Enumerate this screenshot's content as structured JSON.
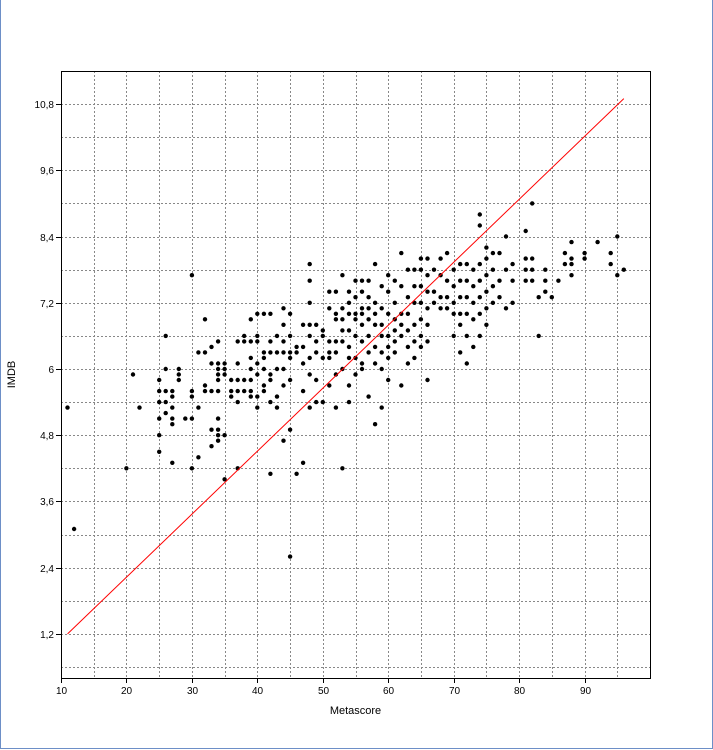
{
  "chart_data": {
    "type": "scatter",
    "title": "",
    "xlabel": "Metascore",
    "ylabel": "IMDB",
    "xlim": [
      10,
      100
    ],
    "ylim": [
      0.4,
      11.4
    ],
    "xticks": [
      10,
      20,
      30,
      40,
      50,
      60,
      70,
      80,
      90
    ],
    "xtick_labels": [
      "10",
      "20",
      "30",
      "40",
      "50",
      "60",
      "70",
      "80",
      "90"
    ],
    "yticks": [
      1.2,
      2.4,
      3.6,
      4.8,
      6.0,
      7.2,
      8.4,
      9.6,
      10.8
    ],
    "ytick_labels": [
      "1,2",
      "2,4",
      "3,6",
      "4,8",
      "6",
      "7,2",
      "8,4",
      "9,6",
      "10,8"
    ],
    "grid": true,
    "grid_style": "dotted",
    "point_color": "#000000",
    "line_color": "#ff0000",
    "reference_line": {
      "x": [
        11,
        96
      ],
      "y": [
        1.2,
        10.9
      ]
    },
    "points": [
      [
        11,
        5.3
      ],
      [
        12,
        3.1
      ],
      [
        20,
        4.2
      ],
      [
        21,
        5.9
      ],
      [
        22,
        5.3
      ],
      [
        25,
        5.8
      ],
      [
        25,
        5.6
      ],
      [
        25,
        5.4
      ],
      [
        25,
        5.1
      ],
      [
        25,
        4.8
      ],
      [
        25,
        4.5
      ],
      [
        26,
        6.0
      ],
      [
        26,
        6.6
      ],
      [
        26,
        5.6
      ],
      [
        26,
        5.4
      ],
      [
        26,
        5.2
      ],
      [
        27,
        5.6
      ],
      [
        27,
        5.5
      ],
      [
        27,
        5.3
      ],
      [
        27,
        5.1
      ],
      [
        27,
        5.0
      ],
      [
        27,
        4.3
      ],
      [
        28,
        6.0
      ],
      [
        28,
        5.9
      ],
      [
        28,
        5.8
      ],
      [
        29,
        5.1
      ],
      [
        30,
        7.7
      ],
      [
        30,
        5.6
      ],
      [
        30,
        5.5
      ],
      [
        30,
        5.1
      ],
      [
        30,
        4.2
      ],
      [
        31,
        6.3
      ],
      [
        31,
        5.3
      ],
      [
        31,
        4.4
      ],
      [
        32,
        6.9
      ],
      [
        32,
        6.3
      ],
      [
        32,
        5.7
      ],
      [
        32,
        5.6
      ],
      [
        33,
        6.4
      ],
      [
        33,
        6.1
      ],
      [
        33,
        5.6
      ],
      [
        33,
        4.9
      ],
      [
        33,
        4.6
      ],
      [
        34,
        6.5
      ],
      [
        34,
        6.1
      ],
      [
        34,
        6.0
      ],
      [
        34,
        5.9
      ],
      [
        34,
        5.8
      ],
      [
        34,
        5.6
      ],
      [
        34,
        5.1
      ],
      [
        34,
        4.9
      ],
      [
        34,
        4.8
      ],
      [
        34,
        4.7
      ],
      [
        35,
        6.1
      ],
      [
        35,
        6.0
      ],
      [
        35,
        5.9
      ],
      [
        35,
        4.8
      ],
      [
        35,
        4.0
      ],
      [
        36,
        5.8
      ],
      [
        36,
        5.6
      ],
      [
        36,
        5.5
      ],
      [
        37,
        6.5
      ],
      [
        37,
        6.1
      ],
      [
        37,
        5.8
      ],
      [
        37,
        5.6
      ],
      [
        37,
        5.4
      ],
      [
        37,
        4.2
      ],
      [
        38,
        6.6
      ],
      [
        38,
        6.5
      ],
      [
        38,
        5.8
      ],
      [
        38,
        5.6
      ],
      [
        39,
        6.9
      ],
      [
        39,
        6.5
      ],
      [
        39,
        6.2
      ],
      [
        39,
        6.0
      ],
      [
        39,
        5.8
      ],
      [
        39,
        5.6
      ],
      [
        39,
        5.5
      ],
      [
        40,
        7.0
      ],
      [
        40,
        6.6
      ],
      [
        40,
        6.5
      ],
      [
        40,
        6.1
      ],
      [
        40,
        5.9
      ],
      [
        40,
        5.5
      ],
      [
        40,
        5.3
      ],
      [
        41,
        7.0
      ],
      [
        41,
        6.3
      ],
      [
        41,
        6.2
      ],
      [
        41,
        6.0
      ],
      [
        41,
        5.7
      ],
      [
        41,
        5.6
      ],
      [
        42,
        7.0
      ],
      [
        42,
        6.5
      ],
      [
        42,
        6.3
      ],
      [
        42,
        5.9
      ],
      [
        42,
        5.8
      ],
      [
        42,
        5.4
      ],
      [
        42,
        4.1
      ],
      [
        43,
        6.6
      ],
      [
        43,
        6.3
      ],
      [
        43,
        6.0
      ],
      [
        43,
        5.5
      ],
      [
        43,
        5.3
      ],
      [
        44,
        7.1
      ],
      [
        44,
        6.8
      ],
      [
        44,
        6.5
      ],
      [
        44,
        6.3
      ],
      [
        44,
        6.0
      ],
      [
        44,
        5.7
      ],
      [
        44,
        4.7
      ],
      [
        45,
        7.0
      ],
      [
        45,
        6.6
      ],
      [
        45,
        6.3
      ],
      [
        45,
        6.2
      ],
      [
        45,
        5.8
      ],
      [
        45,
        4.9
      ],
      [
        45,
        2.6
      ],
      [
        46,
        6.4
      ],
      [
        46,
        6.3
      ],
      [
        46,
        4.1
      ],
      [
        47,
        6.8
      ],
      [
        47,
        6.4
      ],
      [
        47,
        6.1
      ],
      [
        47,
        5.6
      ],
      [
        47,
        4.3
      ],
      [
        48,
        7.9
      ],
      [
        48,
        7.6
      ],
      [
        48,
        7.2
      ],
      [
        48,
        6.8
      ],
      [
        48,
        6.6
      ],
      [
        48,
        6.2
      ],
      [
        48,
        5.9
      ],
      [
        48,
        5.3
      ],
      [
        49,
        6.8
      ],
      [
        49,
        6.5
      ],
      [
        49,
        6.3
      ],
      [
        49,
        5.8
      ],
      [
        49,
        5.4
      ],
      [
        50,
        6.7
      ],
      [
        50,
        6.6
      ],
      [
        50,
        6.2
      ],
      [
        50,
        5.4
      ],
      [
        51,
        7.4
      ],
      [
        51,
        7.1
      ],
      [
        51,
        6.5
      ],
      [
        51,
        6.3
      ],
      [
        51,
        6.2
      ],
      [
        51,
        5.7
      ],
      [
        52,
        7.4
      ],
      [
        52,
        7.0
      ],
      [
        52,
        6.9
      ],
      [
        52,
        6.5
      ],
      [
        52,
        6.3
      ],
      [
        52,
        5.9
      ],
      [
        52,
        5.3
      ],
      [
        53,
        7.7
      ],
      [
        53,
        7.1
      ],
      [
        53,
        6.9
      ],
      [
        53,
        6.7
      ],
      [
        53,
        6.5
      ],
      [
        53,
        6.0
      ],
      [
        53,
        4.2
      ],
      [
        54,
        7.4
      ],
      [
        54,
        7.2
      ],
      [
        54,
        7.0
      ],
      [
        54,
        6.7
      ],
      [
        54,
        6.4
      ],
      [
        54,
        6.2
      ],
      [
        54,
        5.7
      ],
      [
        54,
        5.4
      ],
      [
        55,
        7.6
      ],
      [
        55,
        7.3
      ],
      [
        55,
        7.0
      ],
      [
        55,
        6.9
      ],
      [
        55,
        6.6
      ],
      [
        55,
        6.2
      ],
      [
        55,
        5.9
      ],
      [
        56,
        7.6
      ],
      [
        56,
        7.4
      ],
      [
        56,
        7.1
      ],
      [
        56,
        7.0
      ],
      [
        56,
        6.8
      ],
      [
        56,
        6.5
      ],
      [
        56,
        6.1
      ],
      [
        56,
        6.0
      ],
      [
        57,
        7.6
      ],
      [
        57,
        7.3
      ],
      [
        57,
        7.1
      ],
      [
        57,
        6.9
      ],
      [
        57,
        6.6
      ],
      [
        57,
        6.3
      ],
      [
        57,
        5.5
      ],
      [
        58,
        7.9
      ],
      [
        58,
        7.2
      ],
      [
        58,
        7.0
      ],
      [
        58,
        6.8
      ],
      [
        58,
        6.4
      ],
      [
        58,
        6.1
      ],
      [
        58,
        5.0
      ],
      [
        59,
        7.5
      ],
      [
        59,
        7.1
      ],
      [
        59,
        6.8
      ],
      [
        59,
        6.6
      ],
      [
        59,
        6.3
      ],
      [
        59,
        6.0
      ],
      [
        59,
        5.3
      ],
      [
        60,
        7.7
      ],
      [
        60,
        7.4
      ],
      [
        60,
        7.0
      ],
      [
        60,
        6.6
      ],
      [
        60,
        6.4
      ],
      [
        60,
        6.2
      ],
      [
        60,
        5.8
      ],
      [
        61,
        7.6
      ],
      [
        61,
        7.2
      ],
      [
        61,
        6.9
      ],
      [
        61,
        6.7
      ],
      [
        61,
        6.5
      ],
      [
        61,
        6.3
      ],
      [
        62,
        8.1
      ],
      [
        62,
        7.5
      ],
      [
        62,
        7.0
      ],
      [
        62,
        6.8
      ],
      [
        62,
        6.6
      ],
      [
        62,
        5.7
      ],
      [
        63,
        7.8
      ],
      [
        63,
        7.3
      ],
      [
        63,
        7.0
      ],
      [
        63,
        6.7
      ],
      [
        63,
        6.4
      ],
      [
        63,
        6.1
      ],
      [
        64,
        7.8
      ],
      [
        64,
        7.5
      ],
      [
        64,
        7.2
      ],
      [
        64,
        6.8
      ],
      [
        64,
        6.5
      ],
      [
        64,
        6.2
      ],
      [
        65,
        8.0
      ],
      [
        65,
        7.8
      ],
      [
        65,
        7.5
      ],
      [
        65,
        7.2
      ],
      [
        65,
        6.9
      ],
      [
        65,
        6.6
      ],
      [
        65,
        6.4
      ],
      [
        66,
        8.0
      ],
      [
        66,
        7.7
      ],
      [
        66,
        7.4
      ],
      [
        66,
        7.1
      ],
      [
        66,
        6.8
      ],
      [
        66,
        6.5
      ],
      [
        66,
        5.8
      ],
      [
        67,
        7.8
      ],
      [
        67,
        7.4
      ],
      [
        67,
        7.2
      ],
      [
        68,
        8.0
      ],
      [
        68,
        7.7
      ],
      [
        68,
        7.3
      ],
      [
        68,
        7.1
      ],
      [
        69,
        8.1
      ],
      [
        69,
        7.6
      ],
      [
        69,
        7.3
      ],
      [
        69,
        7.1
      ],
      [
        70,
        7.8
      ],
      [
        70,
        7.5
      ],
      [
        70,
        7.2
      ],
      [
        70,
        7.0
      ],
      [
        70,
        6.6
      ],
      [
        71,
        7.9
      ],
      [
        71,
        7.6
      ],
      [
        71,
        7.3
      ],
      [
        71,
        7.0
      ],
      [
        71,
        6.8
      ],
      [
        71,
        6.3
      ],
      [
        72,
        7.9
      ],
      [
        72,
        7.6
      ],
      [
        72,
        7.3
      ],
      [
        72,
        7.0
      ],
      [
        72,
        6.6
      ],
      [
        72,
        6.1
      ],
      [
        73,
        7.8
      ],
      [
        73,
        7.5
      ],
      [
        73,
        7.2
      ],
      [
        73,
        6.9
      ],
      [
        73,
        6.4
      ],
      [
        74,
        8.8
      ],
      [
        74,
        8.6
      ],
      [
        74,
        7.9
      ],
      [
        74,
        7.6
      ],
      [
        74,
        7.3
      ],
      [
        74,
        7.0
      ],
      [
        74,
        6.6
      ],
      [
        75,
        8.2
      ],
      [
        75,
        8.0
      ],
      [
        75,
        7.7
      ],
      [
        75,
        7.4
      ],
      [
        75,
        7.1
      ],
      [
        75,
        6.8
      ],
      [
        76,
        8.1
      ],
      [
        76,
        7.8
      ],
      [
        76,
        7.5
      ],
      [
        76,
        7.2
      ],
      [
        77,
        8.1
      ],
      [
        77,
        7.6
      ],
      [
        77,
        7.3
      ],
      [
        78,
        8.4
      ],
      [
        78,
        7.8
      ],
      [
        78,
        7.1
      ],
      [
        79,
        7.9
      ],
      [
        79,
        7.6
      ],
      [
        79,
        7.2
      ],
      [
        81,
        8.5
      ],
      [
        81,
        8.0
      ],
      [
        81,
        7.8
      ],
      [
        81,
        7.6
      ],
      [
        82,
        9.0
      ],
      [
        82,
        8.0
      ],
      [
        82,
        7.8
      ],
      [
        82,
        7.6
      ],
      [
        83,
        7.3
      ],
      [
        83,
        6.6
      ],
      [
        84,
        7.8
      ],
      [
        84,
        7.6
      ],
      [
        84,
        7.4
      ],
      [
        85,
        7.3
      ],
      [
        86,
        7.6
      ],
      [
        87,
        8.1
      ],
      [
        87,
        7.9
      ],
      [
        88,
        8.3
      ],
      [
        88,
        8.0
      ],
      [
        88,
        7.9
      ],
      [
        88,
        7.7
      ],
      [
        90,
        8.1
      ],
      [
        90,
        8.0
      ],
      [
        92,
        8.3
      ],
      [
        94,
        8.1
      ],
      [
        94,
        7.9
      ],
      [
        95,
        8.4
      ],
      [
        95,
        7.7
      ],
      [
        96,
        7.8
      ]
    ]
  }
}
